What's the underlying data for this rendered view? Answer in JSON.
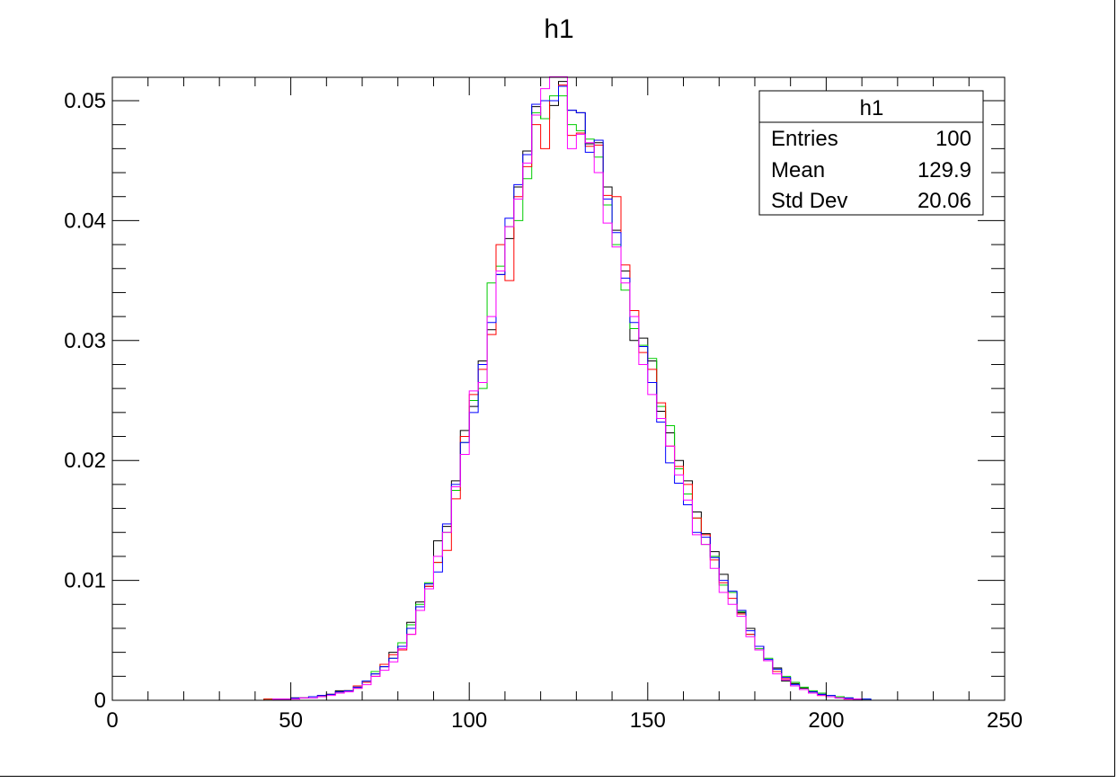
{
  "chart_data": {
    "type": "step",
    "title": "h1",
    "xlabel": "",
    "ylabel": "",
    "xlim": [
      0,
      250
    ],
    "ylim": [
      0,
      0.052
    ],
    "x_ticks": [
      "0",
      "50",
      "100",
      "150",
      "200",
      "250"
    ],
    "y_ticks": [
      "0",
      "0.01",
      "0.02",
      "0.03",
      "0.04",
      "0.05"
    ],
    "grid": false,
    "bin_width": 2.5,
    "bin_start": 0,
    "stats_box": {
      "title": "h1",
      "rows": [
        {
          "label": "Entries",
          "value": "100"
        },
        {
          "label": "Mean",
          "value": "129.9"
        },
        {
          "label": "Std Dev",
          "value": "20.06"
        }
      ]
    },
    "series": [
      {
        "color": "#000000",
        "values": [
          0,
          0,
          0,
          0,
          0,
          0,
          0,
          0,
          0,
          0,
          0,
          0,
          0,
          0,
          0,
          0,
          0,
          0.0001,
          0.0001,
          0.0001,
          0.0002,
          0.0002,
          0.0003,
          0.0004,
          0.0005,
          0.0008,
          0.0008,
          0.001,
          0.0015,
          0.0022,
          0.0028,
          0.004,
          0.0045,
          0.0065,
          0.0082,
          0.0095,
          0.0133,
          0.0145,
          0.0183,
          0.0225,
          0.0245,
          0.0283,
          0.0309,
          0.0355,
          0.0385,
          0.0428,
          0.0458,
          0.0495,
          0.0485,
          0.0496,
          0.0516,
          0.0492,
          0.049,
          0.0464,
          0.0465,
          0.0428,
          0.0392,
          0.0358,
          0.03,
          0.0302,
          0.0283,
          0.0241,
          0.0223,
          0.02,
          0.0183,
          0.0157,
          0.0139,
          0.0124,
          0.0105,
          0.009,
          0.0073,
          0.006,
          0.0045,
          0.0033,
          0.0027,
          0.0016,
          0.0014,
          0.001,
          0.0007,
          0.0005,
          0.0003,
          0.0003,
          0.0002,
          0.0001,
          0.0001,
          0,
          0,
          0,
          0,
          0,
          0,
          0,
          0,
          0,
          0,
          0,
          0,
          0,
          0,
          0
        ]
      },
      {
        "color": "#00cc00",
        "values": [
          0,
          0,
          0,
          0,
          0,
          0,
          0,
          0,
          0,
          0,
          0,
          0,
          0,
          0,
          0,
          0,
          0,
          0.0001,
          0.0001,
          0.0001,
          0.0002,
          0.0002,
          0.0003,
          0.0004,
          0.0005,
          0.0007,
          0.0008,
          0.0011,
          0.0016,
          0.0024,
          0.003,
          0.0035,
          0.0048,
          0.0063,
          0.008,
          0.0098,
          0.0115,
          0.014,
          0.0175,
          0.0215,
          0.025,
          0.026,
          0.0348,
          0.0362,
          0.0395,
          0.04,
          0.0435,
          0.049,
          0.0485,
          0.0504,
          0.0504,
          0.048,
          0.0475,
          0.0468,
          0.0453,
          0.0413,
          0.038,
          0.0342,
          0.031,
          0.0296,
          0.0285,
          0.0245,
          0.0229,
          0.0193,
          0.0172,
          0.0152,
          0.013,
          0.012,
          0.0096,
          0.009,
          0.0074,
          0.0055,
          0.0043,
          0.0035,
          0.0026,
          0.002,
          0.0015,
          0.0011,
          0.0008,
          0.0006,
          0.0004,
          0.0003,
          0.0002,
          0.0001,
          0.0001,
          0,
          0,
          0,
          0,
          0,
          0,
          0,
          0,
          0,
          0,
          0,
          0,
          0,
          0,
          0
        ]
      },
      {
        "color": "#ff0000",
        "values": [
          0,
          0,
          0,
          0,
          0,
          0,
          0,
          0,
          0,
          0,
          0,
          0,
          0,
          0,
          0,
          0,
          0,
          0.0001,
          0.0001,
          0.0001,
          0.0002,
          0.0002,
          0.0003,
          0.0004,
          0.0005,
          0.0007,
          0.0008,
          0.0012,
          0.0015,
          0.002,
          0.003,
          0.0038,
          0.0042,
          0.0055,
          0.0078,
          0.0095,
          0.0115,
          0.0125,
          0.0168,
          0.022,
          0.0255,
          0.0276,
          0.0305,
          0.038,
          0.035,
          0.042,
          0.0445,
          0.048,
          0.046,
          0.05,
          0.0513,
          0.0471,
          0.0473,
          0.0462,
          0.0463,
          0.0421,
          0.042,
          0.0363,
          0.0325,
          0.029,
          0.0276,
          0.0248,
          0.0212,
          0.0195,
          0.018,
          0.0152,
          0.0138,
          0.0117,
          0.0098,
          0.0085,
          0.0072,
          0.0055,
          0.0045,
          0.0033,
          0.0024,
          0.0018,
          0.0012,
          0.0009,
          0.0006,
          0.0004,
          0.0003,
          0.0002,
          0.0001,
          0.0001,
          0,
          0,
          0,
          0,
          0,
          0,
          0,
          0,
          0,
          0,
          0,
          0,
          0,
          0,
          0,
          0
        ]
      },
      {
        "color": "#0000ff",
        "values": [
          0,
          0,
          0,
          0,
          0,
          0,
          0,
          0,
          0,
          0,
          0,
          0,
          0,
          0,
          0,
          0,
          0,
          0,
          0.0001,
          0.0001,
          0.0002,
          0.0002,
          0.0003,
          0.0004,
          0.0005,
          0.0007,
          0.0008,
          0.0011,
          0.0016,
          0.0022,
          0.0028,
          0.0035,
          0.0045,
          0.006,
          0.0078,
          0.0097,
          0.0107,
          0.0147,
          0.018,
          0.0215,
          0.024,
          0.028,
          0.0315,
          0.0355,
          0.0402,
          0.043,
          0.0455,
          0.0497,
          0.05,
          0.05,
          0.0512,
          0.0492,
          0.049,
          0.0457,
          0.0467,
          0.0418,
          0.039,
          0.0352,
          0.0315,
          0.0295,
          0.0265,
          0.0232,
          0.0198,
          0.0181,
          0.0163,
          0.014,
          0.0136,
          0.0119,
          0.01,
          0.0091,
          0.0075,
          0.0058,
          0.0045,
          0.0034,
          0.0026,
          0.0019,
          0.0013,
          0.0009,
          0.0007,
          0.0005,
          0.0004,
          0.0002,
          0.0002,
          0.0001,
          0.0001,
          0,
          0,
          0,
          0,
          0,
          0,
          0,
          0,
          0,
          0,
          0,
          0,
          0,
          0,
          0
        ]
      },
      {
        "color": "#ff00ff",
        "values": [
          0,
          0,
          0,
          0,
          0,
          0,
          0,
          0,
          0,
          0,
          0,
          0,
          0,
          0,
          0,
          0,
          0,
          0,
          0.0001,
          0.0001,
          0.0001,
          0.0002,
          0.0002,
          0.0003,
          0.0004,
          0.0006,
          0.0007,
          0.001,
          0.0013,
          0.002,
          0.0025,
          0.0032,
          0.0043,
          0.0055,
          0.0075,
          0.0093,
          0.012,
          0.014,
          0.0178,
          0.0205,
          0.0258,
          0.0265,
          0.032,
          0.0358,
          0.0395,
          0.0418,
          0.0448,
          0.0488,
          0.051,
          0.052,
          0.052,
          0.046,
          0.0472,
          0.0465,
          0.044,
          0.0398,
          0.0378,
          0.0348,
          0.032,
          0.028,
          0.0255,
          0.0235,
          0.0212,
          0.0188,
          0.0167,
          0.0138,
          0.013,
          0.011,
          0.009,
          0.008,
          0.007,
          0.0053,
          0.0042,
          0.0033,
          0.0022,
          0.0017,
          0.0012,
          0.0009,
          0.0006,
          0.0004,
          0.0003,
          0.0002,
          0.0001,
          0.0001,
          0,
          0,
          0,
          0,
          0,
          0,
          0,
          0,
          0,
          0,
          0,
          0,
          0,
          0,
          0,
          0
        ]
      }
    ]
  }
}
